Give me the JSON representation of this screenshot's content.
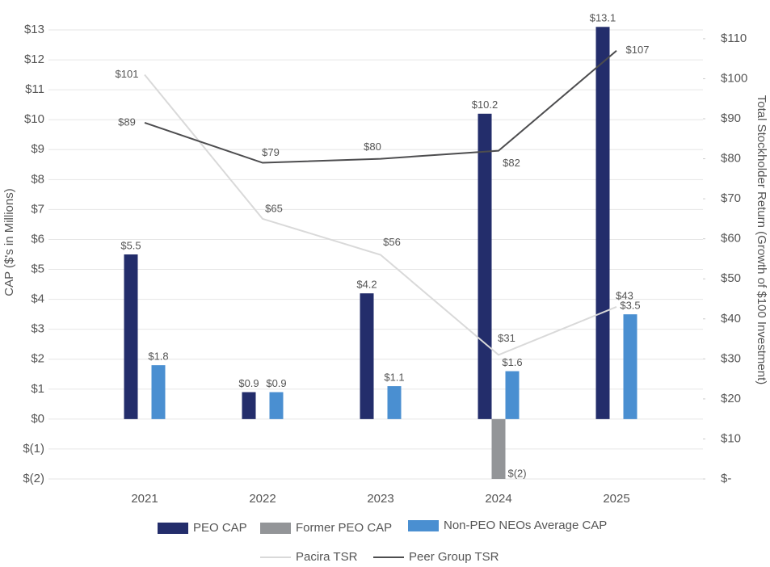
{
  "chart_data": {
    "type": "combo",
    "y_label": "CAP ($'s in Millions)",
    "y2_label": "Total Stockholder Return (Growth of $100 Investment)",
    "categories": [
      "2021",
      "2022",
      "2023",
      "2024",
      "2025"
    ],
    "ylim": [
      -2,
      13
    ],
    "yticks": [
      {
        "value": -2,
        "label": "$(2)"
      },
      {
        "value": -1,
        "label": "$(1)"
      },
      {
        "value": 0,
        "label": "$0"
      },
      {
        "value": 1,
        "label": "$1"
      },
      {
        "value": 2,
        "label": "$2"
      },
      {
        "value": 3,
        "label": "$3"
      },
      {
        "value": 4,
        "label": "$4"
      },
      {
        "value": 5,
        "label": "$5"
      },
      {
        "value": 6,
        "label": "$6"
      },
      {
        "value": 7,
        "label": "$7"
      },
      {
        "value": 8,
        "label": "$8"
      },
      {
        "value": 9,
        "label": "$9"
      },
      {
        "value": 10,
        "label": "$10"
      },
      {
        "value": 11,
        "label": "$11"
      },
      {
        "value": 12,
        "label": "$12"
      },
      {
        "value": 13,
        "label": "$13"
      }
    ],
    "y2lim": [
      0,
      112.2
    ],
    "y2ticks": [
      {
        "value": 0,
        "label": "$-"
      },
      {
        "value": 10,
        "label": "$10"
      },
      {
        "value": 20,
        "label": "$20"
      },
      {
        "value": 30,
        "label": "$30"
      },
      {
        "value": 40,
        "label": "$40"
      },
      {
        "value": 50,
        "label": "$50"
      },
      {
        "value": 60,
        "label": "$60"
      },
      {
        "value": 70,
        "label": "$70"
      },
      {
        "value": 80,
        "label": "$80"
      },
      {
        "value": 90,
        "label": "$90"
      },
      {
        "value": 100,
        "label": "$100"
      },
      {
        "value": 110,
        "label": "$110"
      }
    ],
    "grid": true,
    "legend": "bottom",
    "series": [
      {
        "name": "PEO CAP",
        "type": "bar",
        "color": "#232d6b",
        "values": [
          5.5,
          0.9,
          4.2,
          10.2,
          13.1
        ],
        "value_labels": [
          "$5.5",
          "$0.9",
          "$4.2",
          "$10.2",
          "$13.1"
        ]
      },
      {
        "name": "Former PEO CAP",
        "type": "bar",
        "color": "#939598",
        "values": [
          null,
          null,
          null,
          -2,
          null
        ],
        "value_labels": [
          null,
          null,
          null,
          "$(2)",
          null
        ]
      },
      {
        "name": "Non-PEO NEOs Average CAP",
        "type": "bar",
        "color": "#4a8fd1",
        "values": [
          1.8,
          0.9,
          1.1,
          1.6,
          3.5
        ],
        "value_labels": [
          "$1.8",
          "$0.9",
          "$1.1",
          "$1.6",
          "$3.5"
        ]
      },
      {
        "name": "Pacira TSR",
        "type": "line",
        "axis": "y2",
        "color": "#d9d9d9",
        "values": [
          101,
          65,
          56,
          31,
          43
        ],
        "value_labels": [
          "$101",
          "$65",
          "$56",
          "$31",
          "$43"
        ]
      },
      {
        "name": "Peer Group TSR",
        "type": "line",
        "axis": "y2",
        "color": "#4d4d4f",
        "values": [
          89,
          79,
          80,
          82,
          107
        ],
        "value_labels": [
          "$89",
          "$79",
          "$80",
          "$82",
          "$107"
        ]
      }
    ]
  }
}
